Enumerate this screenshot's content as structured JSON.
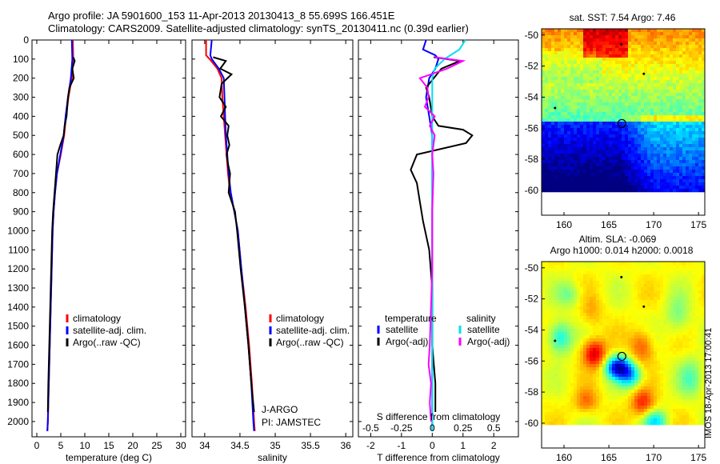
{
  "header": {
    "line1": "Argo profile: JA 5901600_153 11-Apr-2013 20130413_8 55.699S 166.451E",
    "line2": "Climatology: CARS2009. Satellite-adjusted climatology: synTS_20130411.nc (0.39d earlier)"
  },
  "side_stamp": "IMOS 18-Apr-2013 17:00:41",
  "colors": {
    "climatology": "#ff0000",
    "satellite": "#0000ff",
    "argo": "#000000",
    "sal_satellite": "#00e0f0",
    "sal_argo": "#ff00ff"
  },
  "chart_data": [
    {
      "id": "temperature",
      "type": "line",
      "xlabel": "temperature (deg C)",
      "ylabel": "",
      "xlim": [
        -1,
        31
      ],
      "ylim": [
        2080,
        0
      ],
      "xticks": [
        "0",
        "5",
        "10",
        "15",
        "20",
        "25",
        "30"
      ],
      "yticks": [
        "0",
        "100",
        "200",
        "300",
        "400",
        "500",
        "600",
        "700",
        "800",
        "900",
        "1000",
        "1100",
        "1200",
        "1300",
        "1400",
        "1500",
        "1600",
        "1700",
        "1800",
        "1900",
        "2000"
      ],
      "legend": [
        "climatology",
        "satellite-adj. clim.",
        "Argo(..raw -QC)"
      ],
      "series": [
        {
          "name": "climatology",
          "color": "#ff0000",
          "points": [
            [
              7.5,
              0
            ],
            [
              7.6,
              100
            ],
            [
              7.3,
              200
            ],
            [
              6.6,
              300
            ],
            [
              6.1,
              400
            ],
            [
              5.7,
              500
            ],
            [
              5.0,
              600
            ],
            [
              4.2,
              700
            ],
            [
              3.8,
              800
            ],
            [
              3.5,
              900
            ],
            [
              3.3,
              1000
            ],
            [
              3.1,
              1200
            ],
            [
              2.9,
              1400
            ],
            [
              2.7,
              1600
            ],
            [
              2.5,
              1800
            ],
            [
              2.3,
              2000
            ],
            [
              2.2,
              2050
            ]
          ]
        },
        {
          "name": "satellite-adj. clim.",
          "color": "#0000ff",
          "points": [
            [
              7.3,
              0
            ],
            [
              7.4,
              100
            ],
            [
              7.1,
              200
            ],
            [
              6.5,
              300
            ],
            [
              6.0,
              400
            ],
            [
              5.6,
              500
            ],
            [
              4.9,
              600
            ],
            [
              4.2,
              700
            ],
            [
              3.8,
              800
            ],
            [
              3.5,
              900
            ],
            [
              3.3,
              1000
            ],
            [
              3.1,
              1200
            ],
            [
              2.9,
              1400
            ],
            [
              2.7,
              1600
            ],
            [
              2.5,
              1800
            ],
            [
              2.3,
              2000
            ],
            [
              2.2,
              2050
            ]
          ]
        },
        {
          "name": "Argo(..raw -QC)",
          "color": "#000000",
          "points": [
            [
              7.6,
              90
            ],
            [
              7.9,
              110
            ],
            [
              7.4,
              150
            ],
            [
              7.7,
              200
            ],
            [
              6.8,
              250
            ],
            [
              6.5,
              300
            ],
            [
              6.2,
              400
            ],
            [
              5.8,
              450
            ],
            [
              5.6,
              500
            ],
            [
              4.9,
              550
            ],
            [
              4.3,
              600
            ],
            [
              4.0,
              700
            ],
            [
              3.7,
              800
            ],
            [
              3.4,
              900
            ],
            [
              3.2,
              1000
            ],
            [
              3.0,
              1200
            ],
            [
              2.8,
              1400
            ],
            [
              2.6,
              1600
            ],
            [
              2.4,
              1800
            ],
            [
              2.3,
              1950
            ]
          ]
        }
      ]
    },
    {
      "id": "salinity",
      "type": "line",
      "xlabel": "salinity",
      "ylabel": "",
      "xlim": [
        33.82,
        36.1
      ],
      "ylim": [
        2080,
        0
      ],
      "xticks": [
        "34",
        "34.5",
        "35",
        "35.5",
        "36"
      ],
      "legend": [
        "climatology",
        "satellite-adj. clim.",
        "Argo(..raw -QC)"
      ],
      "annotations": [
        "J-ARGO",
        "PI: JAMSTEC"
      ],
      "series": [
        {
          "name": "climatology",
          "color": "#ff0000",
          "points": [
            [
              34.02,
              0
            ],
            [
              34.02,
              80
            ],
            [
              34.07,
              100
            ],
            [
              34.18,
              150
            ],
            [
              34.24,
              200
            ],
            [
              34.25,
              300
            ],
            [
              34.27,
              400
            ],
            [
              34.29,
              500
            ],
            [
              34.31,
              600
            ],
            [
              34.33,
              700
            ],
            [
              34.36,
              800
            ],
            [
              34.42,
              900
            ],
            [
              34.47,
              1000
            ],
            [
              34.52,
              1200
            ],
            [
              34.58,
              1400
            ],
            [
              34.63,
              1600
            ],
            [
              34.67,
              1800
            ],
            [
              34.7,
              2000
            ],
            [
              34.71,
              2050
            ]
          ]
        },
        {
          "name": "satellite-adj. clim.",
          "color": "#0000ff",
          "points": [
            [
              34.1,
              0
            ],
            [
              34.08,
              80
            ],
            [
              34.1,
              100
            ],
            [
              34.2,
              150
            ],
            [
              34.27,
              200
            ],
            [
              34.28,
              300
            ],
            [
              34.29,
              400
            ],
            [
              34.3,
              500
            ],
            [
              34.32,
              600
            ],
            [
              34.34,
              700
            ],
            [
              34.37,
              800
            ],
            [
              34.42,
              900
            ],
            [
              34.47,
              1000
            ],
            [
              34.52,
              1200
            ],
            [
              34.57,
              1400
            ],
            [
              34.62,
              1600
            ],
            [
              34.66,
              1800
            ],
            [
              34.69,
              2000
            ],
            [
              34.7,
              2050
            ]
          ]
        },
        {
          "name": "Argo(..raw -QC)",
          "color": "#000000",
          "points": [
            [
              34.12,
              90
            ],
            [
              34.3,
              110
            ],
            [
              34.22,
              150
            ],
            [
              34.38,
              180
            ],
            [
              34.24,
              230
            ],
            [
              34.21,
              300
            ],
            [
              34.3,
              350
            ],
            [
              34.23,
              400
            ],
            [
              34.34,
              450
            ],
            [
              34.32,
              500
            ],
            [
              34.35,
              550
            ],
            [
              34.31,
              600
            ],
            [
              34.33,
              650
            ],
            [
              34.36,
              700
            ],
            [
              34.34,
              800
            ],
            [
              34.43,
              900
            ],
            [
              34.46,
              1000
            ],
            [
              34.51,
              1200
            ],
            [
              34.57,
              1400
            ],
            [
              34.62,
              1600
            ],
            [
              34.66,
              1800
            ],
            [
              34.7,
              1950
            ]
          ]
        }
      ]
    },
    {
      "id": "difference",
      "type": "line",
      "xlabel": "T difference from climatology",
      "x2label": "S difference from climatology",
      "xlim": [
        -2.4,
        2.8
      ],
      "x2lim": [
        -0.6,
        0.7
      ],
      "ylim": [
        2080,
        0
      ],
      "xticks": [
        "-2",
        "-1",
        "0",
        "1",
        "2"
      ],
      "x2ticks": [
        "-0.5",
        "-0.25",
        "0",
        "0.25",
        "0.5"
      ],
      "legend_temperature_title": "temperature",
      "legend_salinity_title": "salinity",
      "legend": [
        "satellite",
        "Argo(-adj)",
        "satellite",
        "Argo(-adj)"
      ],
      "series": [
        {
          "name": "satellite",
          "color": "#0000ff",
          "points": [
            [
              -0.2,
              0
            ],
            [
              -0.3,
              50
            ],
            [
              0.1,
              80
            ],
            [
              0.2,
              100
            ],
            [
              0.1,
              150
            ],
            [
              -0.1,
              200
            ],
            [
              -0.2,
              300
            ],
            [
              -0.1,
              400
            ],
            [
              0.0,
              500
            ],
            [
              0.0,
              700
            ],
            [
              0.0,
              900
            ],
            [
              0.0,
              1200
            ],
            [
              0.0,
              1500
            ],
            [
              0.0,
              1800
            ],
            [
              0.0,
              2050
            ]
          ]
        },
        {
          "name": "Argo(-adj)",
          "color": "#000000",
          "points": [
            [
              0.05,
              90
            ],
            [
              0.9,
              110
            ],
            [
              0.3,
              150
            ],
            [
              -0.2,
              250
            ],
            [
              -0.1,
              300
            ],
            [
              0.0,
              400
            ],
            [
              0.2,
              450
            ],
            [
              1.0,
              470
            ],
            [
              1.3,
              500
            ],
            [
              1.1,
              540
            ],
            [
              -0.5,
              600
            ],
            [
              -0.7,
              680
            ],
            [
              -0.5,
              750
            ],
            [
              -0.4,
              850
            ],
            [
              -0.3,
              950
            ],
            [
              -0.1,
              1100
            ],
            [
              0.0,
              1300
            ],
            [
              0.0,
              1600
            ],
            [
              0.1,
              1800
            ],
            [
              0.1,
              1950
            ]
          ]
        },
        {
          "name": "satellite",
          "color": "#00e0f0",
          "points": [
            [
              0.27,
              0
            ],
            [
              0.22,
              50
            ],
            [
              0.1,
              100
            ],
            [
              0.02,
              150
            ],
            [
              0.0,
              200
            ],
            [
              0.0,
              500
            ],
            [
              0.0,
              1000
            ],
            [
              0.0,
              1500
            ],
            [
              0.0,
              2050
            ]
          ]
        },
        {
          "name": "Argo(-adj)",
          "color": "#ff00ff",
          "points": [
            [
              0.02,
              90
            ],
            [
              0.25,
              110
            ],
            [
              0.12,
              150
            ],
            [
              -0.1,
              200
            ],
            [
              -0.04,
              250
            ],
            [
              -0.03,
              300
            ],
            [
              -0.06,
              350
            ],
            [
              0.02,
              400
            ],
            [
              -0.02,
              450
            ],
            [
              0.02,
              500
            ],
            [
              0.0,
              600
            ],
            [
              0.01,
              700
            ],
            [
              0.0,
              900
            ],
            [
              0.0,
              1200
            ],
            [
              -0.02,
              1600
            ],
            [
              -0.03,
              1700
            ],
            [
              -0.01,
              1800
            ],
            [
              -0.02,
              1900
            ],
            [
              -0.01,
              2000
            ]
          ]
        }
      ]
    },
    {
      "id": "sst-map",
      "type": "heatmap",
      "title": "sat. SST: 7.54 Argo: 7.46",
      "xlim": [
        157.5,
        175.7
      ],
      "ylim": [
        -61.6,
        -49.6
      ],
      "xticks": [
        "160",
        "165",
        "170",
        "175"
      ],
      "yticks": [
        "-50",
        "-52",
        "-54",
        "-56",
        "-58",
        "-60"
      ],
      "marker": {
        "lon": 166.451,
        "lat": -55.699
      }
    },
    {
      "id": "sla-map",
      "type": "heatmap",
      "title": "Altim. SLA: -0.069",
      "subtitle": "Argo h1000: 0.014 h2000: 0.0018",
      "xlim": [
        157.5,
        175.7
      ],
      "ylim": [
        -61.6,
        -49.6
      ],
      "xticks": [
        "160",
        "165",
        "170",
        "175"
      ],
      "yticks": [
        "-50",
        "-52",
        "-54",
        "-56",
        "-58",
        "-60"
      ],
      "marker": {
        "lon": 166.451,
        "lat": -55.699
      }
    }
  ]
}
